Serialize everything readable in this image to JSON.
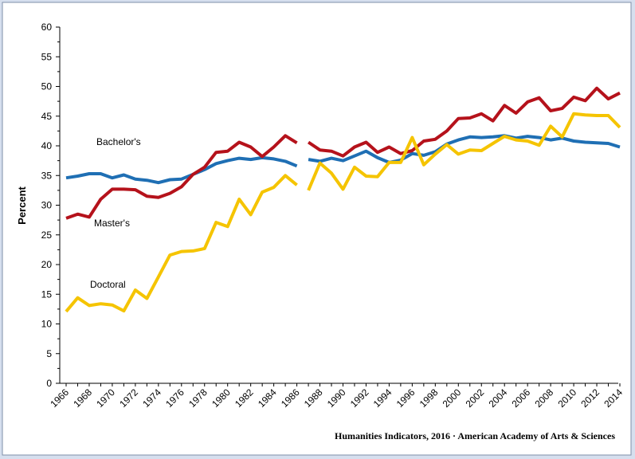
{
  "chart_data": {
    "type": "line",
    "title": "",
    "xlabel": "",
    "ylabel": "Percent",
    "ylim": [
      0,
      60
    ],
    "xlim": [
      1966,
      2014
    ],
    "y_ticks": [
      0,
      5,
      10,
      15,
      20,
      25,
      30,
      35,
      40,
      45,
      50,
      55,
      60
    ],
    "x_ticks": [
      1966,
      1968,
      1970,
      1972,
      1974,
      1976,
      1978,
      1980,
      1982,
      1984,
      1986,
      1988,
      1990,
      1992,
      1994,
      1996,
      1998,
      2000,
      2002,
      2004,
      2006,
      2008,
      2010,
      2012,
      2014
    ],
    "grid": false,
    "legend": "none",
    "gap_between": [
      1986,
      1987
    ],
    "x": [
      1966,
      1967,
      1968,
      1969,
      1970,
      1971,
      1972,
      1973,
      1974,
      1975,
      1976,
      1977,
      1978,
      1979,
      1980,
      1981,
      1982,
      1983,
      1984,
      1985,
      1986,
      1987,
      1988,
      1989,
      1990,
      1991,
      1992,
      1993,
      1994,
      1995,
      1996,
      1997,
      1998,
      1999,
      2000,
      2001,
      2002,
      2003,
      2004,
      2005,
      2006,
      2007,
      2008,
      2009,
      2010,
      2011,
      2012,
      2013,
      2014
    ],
    "series": [
      {
        "name": "Bachelor's",
        "color": "#1f6fb4",
        "values": [
          34.6,
          34.9,
          35.3,
          35.3,
          34.6,
          35.1,
          34.4,
          34.2,
          33.8,
          34.3,
          34.4,
          35.2,
          36.0,
          37.0,
          37.5,
          37.9,
          37.7,
          38.0,
          37.8,
          37.4,
          36.6,
          37.7,
          37.4,
          37.9,
          37.5,
          38.3,
          39.1,
          38.0,
          37.2,
          37.6,
          38.7,
          38.4,
          39.0,
          40.3,
          41.0,
          41.5,
          41.4,
          41.5,
          41.7,
          41.3,
          41.6,
          41.4,
          41.0,
          41.3,
          40.8,
          40.6,
          40.5,
          40.4,
          39.8
        ]
      },
      {
        "name": "Master's",
        "color": "#b5121b",
        "values": [
          27.8,
          28.5,
          28.0,
          31.0,
          32.7,
          32.7,
          32.6,
          31.5,
          31.3,
          32.0,
          33.1,
          35.2,
          36.4,
          38.9,
          39.1,
          40.6,
          39.8,
          38.2,
          39.8,
          41.7,
          40.5,
          40.6,
          39.3,
          39.1,
          38.3,
          39.8,
          40.6,
          38.9,
          39.8,
          38.7,
          39.2,
          40.8,
          41.1,
          42.5,
          44.6,
          44.7,
          45.4,
          44.2,
          46.8,
          45.5,
          47.4,
          48.1,
          45.9,
          46.3,
          48.2,
          47.6,
          49.7,
          47.9,
          48.9
        ]
      },
      {
        "name": "Doctoral",
        "color": "#f5c400",
        "values": [
          12.1,
          14.4,
          13.1,
          13.4,
          13.2,
          12.2,
          15.7,
          14.3,
          17.9,
          21.6,
          22.2,
          22.3,
          22.7,
          27.1,
          26.4,
          31.0,
          28.4,
          32.2,
          33.0,
          35.0,
          33.4,
          32.5,
          37.1,
          35.4,
          32.7,
          36.4,
          34.9,
          34.8,
          37.2,
          37.2,
          41.4,
          36.8,
          38.6,
          40.2,
          38.6,
          39.3,
          39.2,
          40.4,
          41.6,
          41.0,
          40.8,
          40.1,
          43.3,
          41.5,
          45.4,
          45.2,
          45.1,
          45.1,
          43.1
        ]
      }
    ]
  },
  "labels": {
    "bachelors": "Bachelor's",
    "masters": "Master's",
    "doctoral": "Doctoral"
  },
  "credit": "Humanities  Indicators, 2016 · American Academy of Arts & Sciences"
}
